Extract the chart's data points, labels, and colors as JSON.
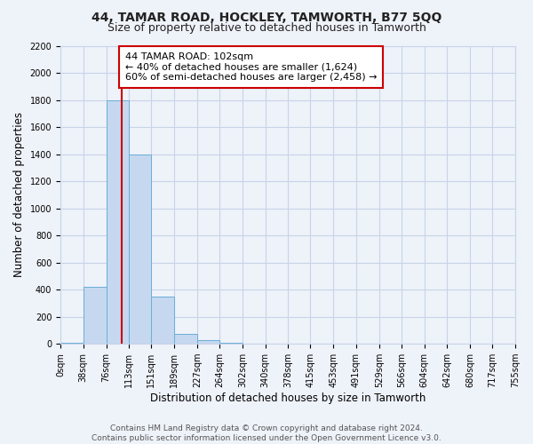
{
  "title": "44, TAMAR ROAD, HOCKLEY, TAMWORTH, B77 5QQ",
  "subtitle": "Size of property relative to detached houses in Tamworth",
  "xlabel": "Distribution of detached houses by size in Tamworth",
  "ylabel": "Number of detached properties",
  "bin_edges": [
    0,
    38,
    76,
    113,
    151,
    189,
    227,
    264,
    302,
    340,
    378,
    415,
    453,
    491,
    529,
    566,
    604,
    642,
    680,
    717,
    755
  ],
  "bar_heights": [
    10,
    420,
    1800,
    1400,
    350,
    75,
    25,
    10,
    0,
    0,
    0,
    0,
    0,
    0,
    0,
    0,
    0,
    0,
    0,
    0
  ],
  "bar_color": "#c5d8f0",
  "bar_edge_color": "#6aaed6",
  "property_size": 102,
  "vline_color": "#cc0000",
  "annotation_text": "44 TAMAR ROAD: 102sqm\n← 40% of detached houses are smaller (1,624)\n60% of semi-detached houses are larger (2,458) →",
  "annotation_box_color": "#ffffff",
  "annotation_box_edge_color": "#cc0000",
  "ylim": [
    0,
    2200
  ],
  "yticks": [
    0,
    200,
    400,
    600,
    800,
    1000,
    1200,
    1400,
    1600,
    1800,
    2000,
    2200
  ],
  "xtick_labels": [
    "0sqm",
    "38sqm",
    "76sqm",
    "113sqm",
    "151sqm",
    "189sqm",
    "227sqm",
    "264sqm",
    "302sqm",
    "340sqm",
    "378sqm",
    "415sqm",
    "453sqm",
    "491sqm",
    "529sqm",
    "566sqm",
    "604sqm",
    "642sqm",
    "680sqm",
    "717sqm",
    "755sqm"
  ],
  "footer_text": "Contains HM Land Registry data © Crown copyright and database right 2024.\nContains public sector information licensed under the Open Government Licence v3.0.",
  "background_color": "#eef2f9",
  "grid_color": "#c8d4e8",
  "title_fontsize": 10,
  "subtitle_fontsize": 9,
  "axis_label_fontsize": 8.5,
  "tick_fontsize": 7,
  "footer_fontsize": 6.5,
  "annotation_fontsize": 8
}
